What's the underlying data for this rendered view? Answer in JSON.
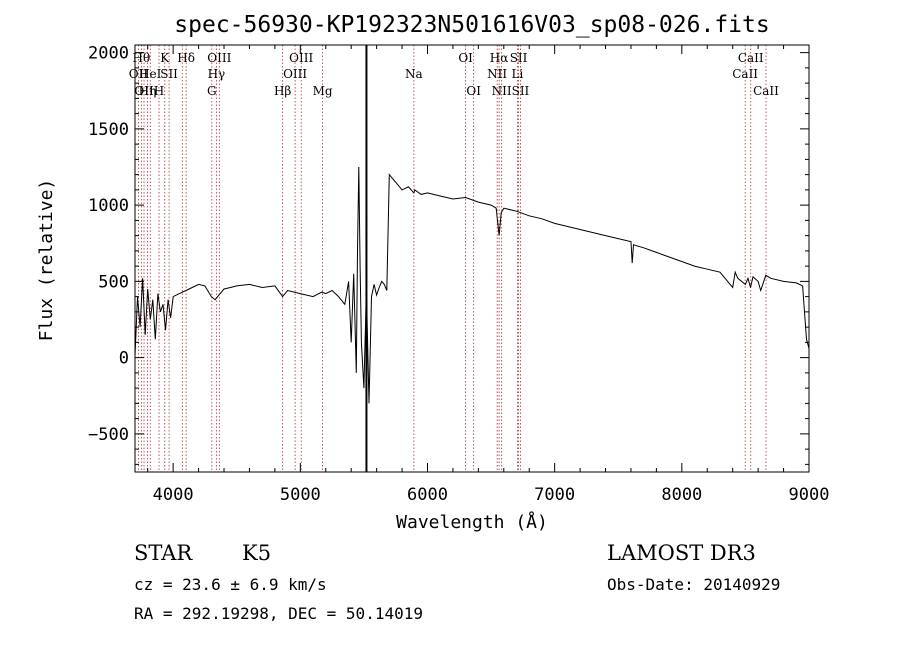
{
  "chart_data": {
    "type": "line",
    "title": "spec-56930-KP192323N501616V03_sp08-026.fits",
    "xlabel": "Wavelength (Å)",
    "ylabel": "Flux (relative)",
    "xlim": [
      3700,
      9000
    ],
    "ylim": [
      -750,
      2050
    ],
    "x_ticks": [
      4000,
      5000,
      6000,
      7000,
      8000,
      9000
    ],
    "y_ticks": [
      -500,
      0,
      500,
      1000,
      1500,
      2000
    ],
    "grid": false,
    "series": [
      {
        "x": [
          3700,
          3720,
          3740,
          3760,
          3780,
          3800,
          3820,
          3840,
          3860,
          3880,
          3900,
          3920,
          3940,
          3960,
          3980,
          4000,
          4050,
          4100,
          4150,
          4200,
          4250,
          4300,
          4330,
          4360,
          4400,
          4450,
          4500,
          4600,
          4700,
          4800,
          4861,
          4900,
          5000,
          5100,
          5170,
          5200,
          5250,
          5300,
          5350,
          5380,
          5400,
          5420,
          5440,
          5450,
          5460,
          5470,
          5480,
          5500,
          5520,
          5540,
          5560,
          5580,
          5600,
          5620,
          5640,
          5660,
          5680,
          5700,
          5750,
          5800,
          5850,
          5893,
          5900,
          5950,
          6000,
          6100,
          6200,
          6300,
          6400,
          6500,
          6540,
          6563,
          6580,
          6600,
          6700,
          6800,
          6900,
          7000,
          7200,
          7400,
          7600,
          7610,
          7620,
          7700,
          7800,
          7900,
          8000,
          8100,
          8200,
          8300,
          8400,
          8420,
          8440,
          8500,
          8520,
          8540,
          8560,
          8600,
          8620,
          8660,
          8700,
          8800,
          8900,
          8950,
          8980,
          9000
        ],
        "values": [
          10,
          400,
          200,
          520,
          150,
          450,
          250,
          380,
          120,
          420,
          300,
          350,
          180,
          380,
          260,
          400,
          420,
          440,
          460,
          480,
          470,
          400,
          380,
          410,
          450,
          460,
          470,
          480,
          460,
          470,
          400,
          440,
          420,
          400,
          430,
          420,
          440,
          400,
          350,
          500,
          100,
          550,
          -100,
          700,
          1250,
          600,
          100,
          -200,
          450,
          -300,
          400,
          480,
          410,
          460,
          500,
          480,
          440,
          1200,
          1150,
          1100,
          1120,
          1080,
          1100,
          1070,
          1080,
          1060,
          1040,
          1050,
          1020,
          1000,
          980,
          800,
          950,
          980,
          960,
          930,
          910,
          880,
          840,
          800,
          760,
          620,
          740,
          720,
          690,
          660,
          630,
          600,
          580,
          560,
          460,
          560,
          520,
          480,
          520,
          460,
          530,
          500,
          440,
          540,
          520,
          500,
          490,
          470,
          120,
          60
        ]
      }
    ],
    "line_markers": [
      {
        "wl": 3727,
        "label": "OII",
        "row": 2
      },
      {
        "wl": 3750,
        "label": "Hθ",
        "row": 1
      },
      {
        "wl": 3771,
        "label": "OII",
        "row": 3
      },
      {
        "wl": 3798,
        "label": "Hη",
        "row": 3
      },
      {
        "wl": 3820,
        "label": "HeI",
        "row": 2
      },
      {
        "wl": 3889,
        "label": "H",
        "row": 3
      },
      {
        "wl": 3934,
        "label": "K",
        "row": 1
      },
      {
        "wl": 3968,
        "label": "SII",
        "row": 2
      },
      {
        "wl": 4102,
        "label": "Hδ",
        "row": 1
      },
      {
        "wl": 4072,
        "label": "",
        "row": 0
      },
      {
        "wl": 4304,
        "label": "G",
        "row": 3
      },
      {
        "wl": 4340,
        "label": "Hγ",
        "row": 2
      },
      {
        "wl": 4363,
        "label": "OIII",
        "row": 1
      },
      {
        "wl": 4861,
        "label": "Hβ",
        "row": 3
      },
      {
        "wl": 4959,
        "label": "OIII",
        "row": 2
      },
      {
        "wl": 5007,
        "label": "OIII",
        "row": 1
      },
      {
        "wl": 5175,
        "label": "Mg",
        "row": 3
      },
      {
        "wl": 5893,
        "label": "Na",
        "row": 2
      },
      {
        "wl": 6300,
        "label": "OI",
        "row": 1
      },
      {
        "wl": 6363,
        "label": "OI",
        "row": 3
      },
      {
        "wl": 6548,
        "label": "NII",
        "row": 2
      },
      {
        "wl": 6563,
        "label": "Hα",
        "row": 1
      },
      {
        "wl": 6583,
        "label": "NII",
        "row": 3
      },
      {
        "wl": 6707,
        "label": "Li",
        "row": 2
      },
      {
        "wl": 6716,
        "label": "SII",
        "row": 1
      },
      {
        "wl": 6731,
        "label": "SII",
        "row": 3
      },
      {
        "wl": 8498,
        "label": "CaII",
        "row": 2
      },
      {
        "wl": 8542,
        "label": "CaII",
        "row": 1
      },
      {
        "wl": 8662,
        "label": "CaII",
        "row": 3
      }
    ],
    "marker_color": "#b03030",
    "line_color": "#000000"
  },
  "info": {
    "class": "STAR",
    "subclass": "K5",
    "survey": "LAMOST DR3",
    "cz": "cz = 23.6 ± 6.9 km/s",
    "obs_date": "Obs-Date: 20140929",
    "coords": "RA = 292.19298, DEC =  50.14019"
  }
}
